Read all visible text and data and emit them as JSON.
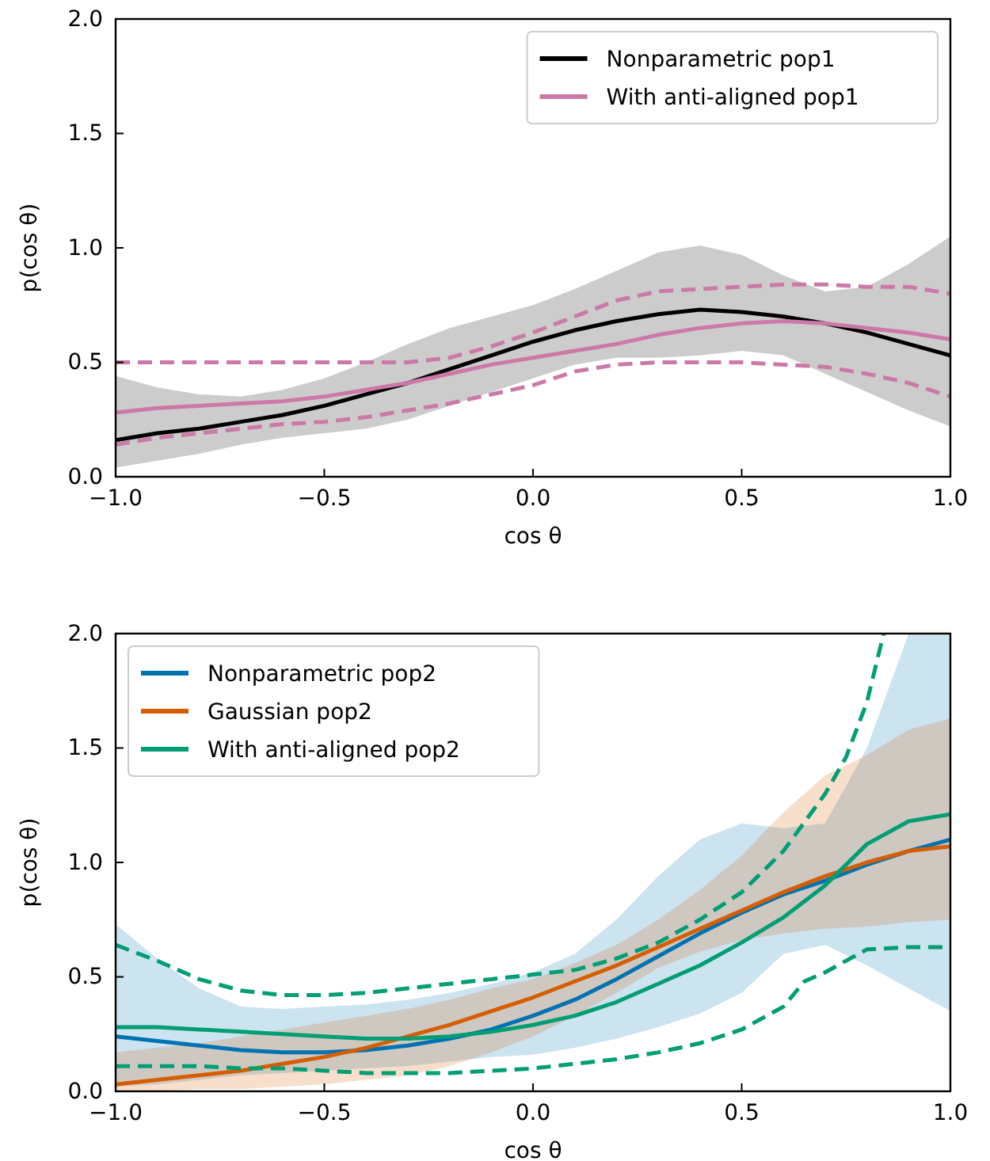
{
  "chart_data": [
    {
      "type": "line",
      "xlabel": "cos θ",
      "ylabel": "p(cos θ)",
      "legend": "top right",
      "grid": false,
      "xlim": [
        -1,
        1
      ],
      "ylim": [
        0,
        2
      ],
      "xticks": [
        {
          "value": -1,
          "label": "−1.0"
        },
        {
          "value": -0.5,
          "label": "−0.5"
        },
        {
          "value": 0,
          "label": "0.0"
        },
        {
          "value": 0.5,
          "label": "0.5"
        },
        {
          "value": 1,
          "label": "1.0"
        }
      ],
      "yticks": [
        {
          "value": 0,
          "label": "0.0"
        },
        {
          "value": 0.5,
          "label": "0.5"
        },
        {
          "value": 1,
          "label": "1.0"
        },
        {
          "value": 1.5,
          "label": "1.5"
        },
        {
          "value": 2,
          "label": "2.0"
        }
      ],
      "x": [
        -1,
        -0.9,
        -0.8,
        -0.7,
        -0.6,
        -0.5,
        -0.4,
        -0.3,
        -0.2,
        -0.1,
        0,
        0.1,
        0.2,
        0.3,
        0.4,
        0.5,
        0.6,
        0.7,
        0.8,
        0.9,
        1
      ],
      "series": [
        {
          "name": "Nonparametric pop1",
          "color": "#000000",
          "values": [
            0.16,
            0.19,
            0.21,
            0.24,
            0.27,
            0.31,
            0.36,
            0.41,
            0.47,
            0.53,
            0.59,
            0.64,
            0.68,
            0.71,
            0.73,
            0.72,
            0.7,
            0.67,
            0.63,
            0.58,
            0.53
          ],
          "lower": [
            0.04,
            0.07,
            0.1,
            0.14,
            0.17,
            0.19,
            0.21,
            0.25,
            0.31,
            0.37,
            0.43,
            0.49,
            0.52,
            0.52,
            0.53,
            0.55,
            0.53,
            0.45,
            0.37,
            0.29,
            0.22
          ],
          "upper": [
            0.44,
            0.39,
            0.36,
            0.35,
            0.38,
            0.43,
            0.5,
            0.58,
            0.65,
            0.7,
            0.75,
            0.82,
            0.9,
            0.98,
            1.01,
            0.97,
            0.88,
            0.81,
            0.83,
            0.93,
            1.05
          ]
        },
        {
          "name": "With anti-aligned pop1",
          "color": "#cc79a7",
          "values": [
            0.28,
            0.3,
            0.31,
            0.32,
            0.33,
            0.35,
            0.38,
            0.41,
            0.45,
            0.49,
            0.52,
            0.55,
            0.58,
            0.62,
            0.65,
            0.67,
            0.68,
            0.67,
            0.65,
            0.63,
            0.6
          ]
        },
        {
          "color": "#cc79a7",
          "line_style": "dashed",
          "values": [
            0.5,
            0.5,
            0.5,
            0.5,
            0.5,
            0.5,
            0.5,
            0.5,
            0.52,
            0.57,
            0.63,
            0.7,
            0.77,
            0.81,
            0.82,
            0.83,
            0.84,
            0.84,
            0.83,
            0.83,
            0.8
          ]
        },
        {
          "color": "#cc79a7",
          "line_style": "dashed",
          "values": [
            0.14,
            0.17,
            0.19,
            0.21,
            0.23,
            0.24,
            0.26,
            0.29,
            0.32,
            0.36,
            0.4,
            0.46,
            0.49,
            0.5,
            0.5,
            0.5,
            0.49,
            0.48,
            0.45,
            0.41,
            0.35
          ]
        }
      ]
    },
    {
      "type": "line",
      "xlabel": "cos θ",
      "ylabel": "p(cos θ)",
      "legend": "top left",
      "grid": false,
      "xlim": [
        -1,
        1
      ],
      "ylim": [
        0,
        2
      ],
      "xticks": [
        {
          "value": -1,
          "label": "−1.0"
        },
        {
          "value": -0.5,
          "label": "−0.5"
        },
        {
          "value": 0,
          "label": "0.0"
        },
        {
          "value": 0.5,
          "label": "0.5"
        },
        {
          "value": 1,
          "label": "1.0"
        }
      ],
      "yticks": [
        {
          "value": 0,
          "label": "0.0"
        },
        {
          "value": 0.5,
          "label": "0.5"
        },
        {
          "value": 1,
          "label": "1.0"
        },
        {
          "value": 1.5,
          "label": "1.5"
        },
        {
          "value": 2,
          "label": "2.0"
        }
      ],
      "x": [
        -1,
        -0.9,
        -0.8,
        -0.7,
        -0.6,
        -0.5,
        -0.4,
        -0.3,
        -0.2,
        -0.1,
        0,
        0.1,
        0.2,
        0.3,
        0.4,
        0.5,
        0.6,
        0.7,
        0.8,
        0.9,
        1
      ],
      "series": [
        {
          "name": "Nonparametric pop2",
          "color": "#0072b2",
          "values": [
            0.24,
            0.22,
            0.2,
            0.18,
            0.17,
            0.17,
            0.18,
            0.2,
            0.23,
            0.27,
            0.33,
            0.4,
            0.49,
            0.59,
            0.69,
            0.78,
            0.86,
            0.92,
            0.99,
            1.05,
            1.1
          ],
          "lower": [
            0.02,
            0.03,
            0.05,
            0.07,
            0.08,
            0.09,
            0.1,
            0.11,
            0.13,
            0.15,
            0.16,
            0.19,
            0.23,
            0.28,
            0.34,
            0.43,
            0.6,
            0.64,
            0.55,
            0.45,
            0.35
          ],
          "upper": [
            0.73,
            0.58,
            0.45,
            0.37,
            0.36,
            0.37,
            0.38,
            0.4,
            0.43,
            0.47,
            0.52,
            0.6,
            0.75,
            0.94,
            1.1,
            1.17,
            1.15,
            1.17,
            1.5,
            2.0,
            2.0
          ]
        },
        {
          "name": "Gaussian pop2",
          "color": "#d55e00",
          "values": [
            0.03,
            0.05,
            0.07,
            0.09,
            0.12,
            0.15,
            0.19,
            0.24,
            0.29,
            0.35,
            0.41,
            0.48,
            0.55,
            0.63,
            0.71,
            0.79,
            0.87,
            0.94,
            1.0,
            1.05,
            1.07
          ],
          "lower": [
            0.0,
            0.0,
            0.01,
            0.01,
            0.02,
            0.03,
            0.05,
            0.07,
            0.11,
            0.17,
            0.24,
            0.33,
            0.43,
            0.54,
            0.61,
            0.66,
            0.69,
            0.71,
            0.72,
            0.74,
            0.75
          ],
          "upper": [
            0.17,
            0.19,
            0.21,
            0.24,
            0.27,
            0.3,
            0.33,
            0.36,
            0.4,
            0.45,
            0.49,
            0.56,
            0.64,
            0.75,
            0.88,
            1.03,
            1.22,
            1.38,
            1.47,
            1.58,
            1.63
          ]
        },
        {
          "name": "With anti-aligned pop2",
          "color": "#009e73",
          "values": [
            0.28,
            0.28,
            0.27,
            0.26,
            0.25,
            0.24,
            0.23,
            0.23,
            0.24,
            0.26,
            0.29,
            0.33,
            0.39,
            0.47,
            0.55,
            0.65,
            0.76,
            0.9,
            1.08,
            1.18,
            1.21
          ]
        },
        {
          "color": "#009e73",
          "line_style": "dashed",
          "x": [
            -1,
            -0.9,
            -0.8,
            -0.7,
            -0.6,
            -0.5,
            -0.4,
            -0.3,
            -0.2,
            -0.1,
            0,
            0.1,
            0.2,
            0.3,
            0.4,
            0.5,
            0.6,
            0.7,
            0.75,
            0.8,
            0.84
          ],
          "values": [
            0.64,
            0.57,
            0.49,
            0.44,
            0.42,
            0.42,
            0.43,
            0.45,
            0.47,
            0.49,
            0.51,
            0.53,
            0.58,
            0.65,
            0.75,
            0.87,
            1.05,
            1.3,
            1.46,
            1.7,
            2.0
          ]
        },
        {
          "color": "#009e73",
          "line_style": "dashed",
          "x": [
            -1,
            -0.9,
            -0.8,
            -0.7,
            -0.6,
            -0.5,
            -0.4,
            -0.3,
            -0.2,
            -0.1,
            0,
            0.1,
            0.2,
            0.3,
            0.4,
            0.5,
            0.6,
            0.65,
            0.7,
            0.8,
            0.9,
            1
          ],
          "values": [
            0.11,
            0.11,
            0.11,
            0.1,
            0.1,
            0.09,
            0.08,
            0.08,
            0.08,
            0.09,
            0.1,
            0.12,
            0.14,
            0.17,
            0.21,
            0.27,
            0.37,
            0.48,
            0.52,
            0.62,
            0.63,
            0.63
          ]
        }
      ]
    }
  ]
}
